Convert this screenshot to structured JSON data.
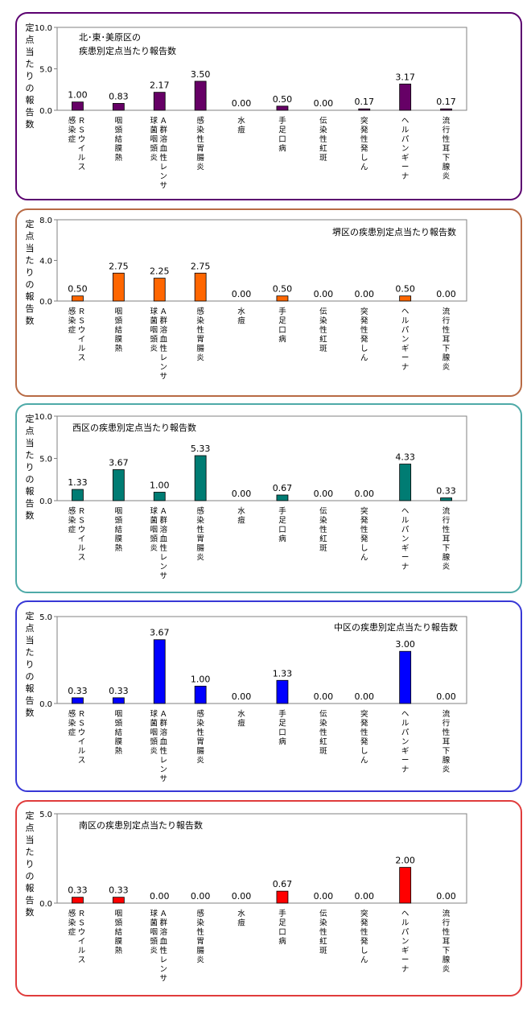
{
  "categories": [
    [
      "Ｒ",
      "Ｓ",
      "ウ",
      "イ",
      "ル",
      "ス",
      "感",
      "染",
      "症"
    ],
    [
      "咽",
      "頭",
      "結",
      "膜",
      "熱"
    ],
    [
      "Ａ",
      "群",
      "溶",
      "血",
      "性",
      "レ",
      "ン",
      "サ",
      "球",
      "菌",
      "咽",
      "頭",
      "炎"
    ],
    [
      "感",
      "染",
      "性",
      "胃",
      "腸",
      "炎"
    ],
    [
      "水",
      "痘"
    ],
    [
      "手",
      "足",
      "口",
      "病"
    ],
    [
      "伝",
      "染",
      "性",
      "紅",
      "斑"
    ],
    [
      "突",
      "発",
      "性",
      "発",
      "し",
      "ん"
    ],
    [
      "ヘ",
      "ル",
      "パ",
      "ン",
      "ギ",
      "ー",
      "ナ"
    ],
    [
      "流",
      "行",
      "性",
      "耳",
      "下",
      "腺",
      "炎"
    ]
  ],
  "ylabel": [
    "定",
    "点",
    "当",
    "た",
    "り",
    "の",
    "報",
    "告",
    "数"
  ],
  "chart_data": [
    {
      "type": "bar",
      "title": [
        "北･東･美原区の",
        "疾患別定点当たり報告数"
      ],
      "color": "#660066",
      "border": "#5b0070",
      "ylim": [
        0,
        10
      ],
      "ticks": [
        "0.0",
        "5.0",
        "10.0"
      ],
      "values": [
        1.0,
        0.83,
        2.17,
        3.5,
        0.0,
        0.5,
        0.0,
        0.17,
        3.17,
        0.17
      ],
      "labels": [
        "1.00",
        "0.83",
        "2.17",
        "3.50",
        "0.00",
        "0.50",
        "0.00",
        "0.17",
        "3.17",
        "0.17"
      ]
    },
    {
      "type": "bar",
      "title": [
        "堺区の疾患別定点当たり報告数"
      ],
      "color": "#ff6600",
      "border": "#b86a44",
      "ylim": [
        0,
        8
      ],
      "ticks": [
        "0.0",
        "4.0",
        "8.0"
      ],
      "values": [
        0.5,
        2.75,
        2.25,
        2.75,
        0.0,
        0.5,
        0.0,
        0.0,
        0.5,
        0.0
      ],
      "labels": [
        "0.50",
        "2.75",
        "2.25",
        "2.75",
        "0.00",
        "0.50",
        "0.00",
        "0.00",
        "0.50",
        "0.00"
      ]
    },
    {
      "type": "bar",
      "title": [
        "西区の疾患別定点当たり報告数"
      ],
      "color": "#007c73",
      "border": "#4eaaa8",
      "ylim": [
        0,
        10
      ],
      "ticks": [
        "0.0",
        "5.0",
        "10.0"
      ],
      "values": [
        1.33,
        3.67,
        1.0,
        5.33,
        0.0,
        0.67,
        0.0,
        0.0,
        4.33,
        0.33
      ],
      "labels": [
        "1.33",
        "3.67",
        "1.00",
        "5.33",
        "0.00",
        "0.67",
        "0.00",
        "0.00",
        "4.33",
        "0.33"
      ]
    },
    {
      "type": "bar",
      "title": [
        "中区の疾患別定点当たり報告数"
      ],
      "color": "#0000ff",
      "border": "#3838d6",
      "ylim": [
        0,
        5
      ],
      "ticks": [
        "0.0",
        "5.0"
      ],
      "values": [
        0.33,
        0.33,
        3.67,
        1.0,
        0.0,
        1.33,
        0.0,
        0.0,
        3.0,
        0.0
      ],
      "labels": [
        "0.33",
        "0.33",
        "3.67",
        "1.00",
        "0.00",
        "1.33",
        "0.00",
        "0.00",
        "3.00",
        "0.00"
      ]
    },
    {
      "type": "bar",
      "title": [
        "南区の疾患別定点当たり報告数"
      ],
      "color": "#ff0000",
      "border": "#e03c3c",
      "ylim": [
        0,
        5
      ],
      "ticks": [
        "0.0",
        "5.0"
      ],
      "values": [
        0.33,
        0.33,
        0.0,
        0.0,
        0.0,
        0.67,
        0.0,
        0.0,
        2.0,
        0.0
      ],
      "labels": [
        "0.33",
        "0.33",
        "0.00",
        "0.00",
        "0.00",
        "0.67",
        "0.00",
        "0.00",
        "2.00",
        "0.00"
      ]
    }
  ]
}
